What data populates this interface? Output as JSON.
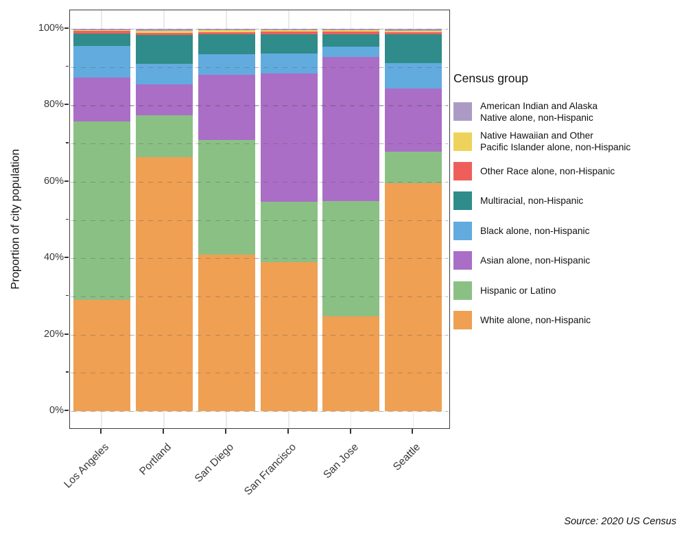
{
  "caption": "Source: 2020 US Census",
  "y_axis": {
    "title": "Proportion of city population",
    "major_tick_labels": [
      "0%",
      "20%",
      "40%",
      "60%",
      "80%",
      "100%"
    ],
    "major_tick_values": [
      0,
      20,
      40,
      60,
      80,
      100
    ],
    "minor_tick_values": [
      10,
      30,
      50,
      70,
      90
    ]
  },
  "x_axis": {
    "tick_labels": [
      "Los Angeles",
      "Portland",
      "San Diego",
      "San Francisco",
      "San Jose",
      "Seattle"
    ]
  },
  "legend": {
    "title": "Census group",
    "entries": [
      {
        "color": "#AB9BC4",
        "lines": [
          "American Indian and Alaska",
          "Native alone, non-Hispanic"
        ]
      },
      {
        "color": "#EDD35B",
        "lines": [
          "Native Hawaiian and Other",
          "Pacific Islander alone, non-Hispanic"
        ]
      },
      {
        "color": "#EE5F5C",
        "lines": [
          "Other Race alone, non-Hispanic"
        ]
      },
      {
        "color": "#2F8C8A",
        "lines": [
          "Multiracial, non-Hispanic"
        ]
      },
      {
        "color": "#62ABDF",
        "lines": [
          "Black alone, non-Hispanic"
        ]
      },
      {
        "color": "#AA6EC6",
        "lines": [
          "Asian alone, non-Hispanic"
        ]
      },
      {
        "color": "#8BC084",
        "lines": [
          "Hispanic or Latino"
        ]
      },
      {
        "color": "#EFA053",
        "lines": [
          "White alone, non-Hispanic"
        ]
      }
    ]
  },
  "chart_data": {
    "type": "bar",
    "stacked": true,
    "title": "",
    "xlabel": "",
    "ylabel": "Proportion of city population",
    "ylim": [
      0,
      100
    ],
    "grid": true,
    "legend_position": "right",
    "legend_title": "Census group",
    "categories": [
      "Los Angeles",
      "Portland",
      "San Diego",
      "San Francisco",
      "San Jose",
      "Seattle"
    ],
    "units": "percent of city population",
    "stack_order": "bottom to top",
    "series": [
      {
        "name": "White alone, non-Hispanic",
        "color": "#EFA053",
        "values": [
          29.0,
          66.4,
          40.9,
          39.0,
          24.7,
          59.6
        ]
      },
      {
        "name": "Hispanic or Latino",
        "color": "#8BC084",
        "values": [
          46.8,
          11.0,
          30.0,
          15.7,
          30.2,
          8.2
        ]
      },
      {
        "name": "Asian alone, non-Hispanic",
        "color": "#AA6EC6",
        "values": [
          11.5,
          8.0,
          17.0,
          33.7,
          37.7,
          16.6
        ]
      },
      {
        "name": "Black alone, non-Hispanic",
        "color": "#62ABDF",
        "values": [
          8.2,
          5.5,
          5.5,
          5.1,
          2.7,
          6.7
        ]
      },
      {
        "name": "Multiracial, non-Hispanic",
        "color": "#2F8C8A",
        "values": [
          3.2,
          7.5,
          5.1,
          5.0,
          3.3,
          7.4
        ]
      },
      {
        "name": "Other Race alone, non-Hispanic",
        "color": "#EE5F5C",
        "values": [
          0.8,
          0.55,
          0.65,
          0.8,
          0.75,
          0.6
        ]
      },
      {
        "name": "Native Hawaiian and Other Pacific Islander alone, non-Hispanic",
        "color": "#EDD35B",
        "values": [
          0.1,
          0.45,
          0.5,
          0.3,
          0.35,
          0.45
        ]
      },
      {
        "name": "American Indian and Alaska Native alone, non-Hispanic",
        "color": "#AB9BC4",
        "values": [
          0.4,
          0.6,
          0.3,
          0.4,
          0.3,
          0.45
        ]
      }
    ]
  }
}
